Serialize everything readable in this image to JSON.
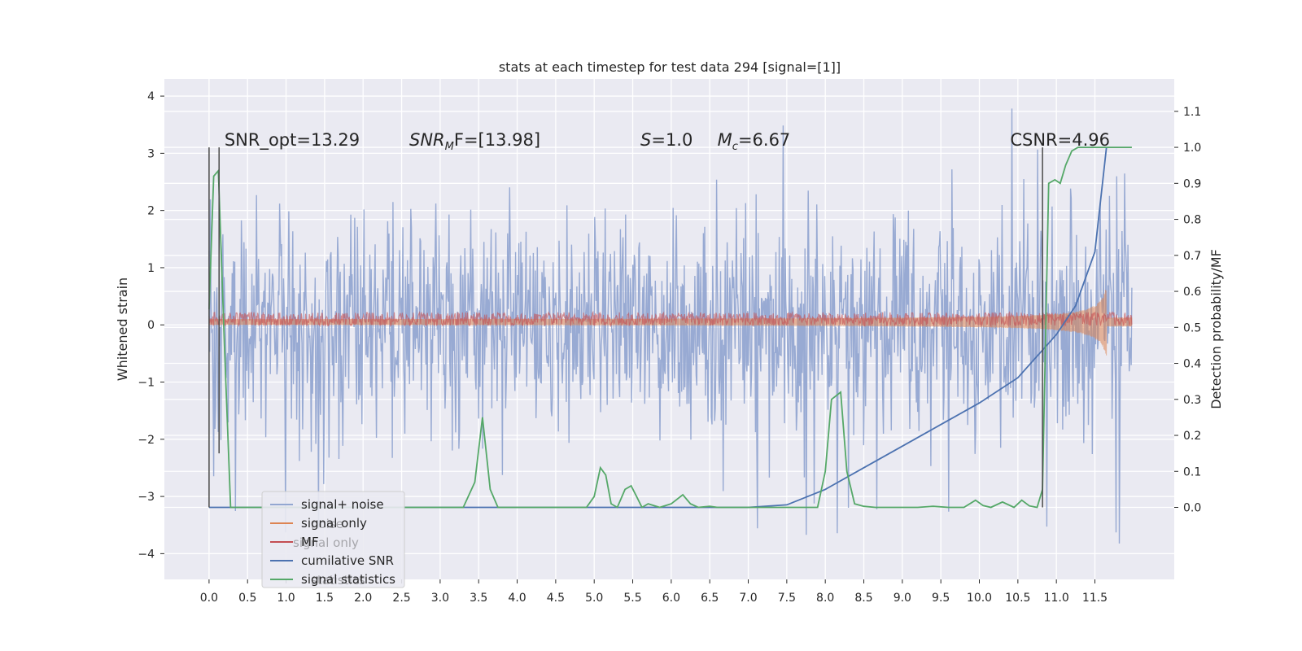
{
  "chart_data": {
    "type": "line",
    "title": "stats at each timestep for test data 294 [signal=[1]]",
    "xlabel": "",
    "ylabel_left": "Whitened strain",
    "ylabel_right": "Detection probability/MF",
    "xlim": [
      -0.58,
      12.53
    ],
    "ylim_left": [
      -4.45,
      4.3
    ],
    "ylim_right": [
      -0.2,
      1.19
    ],
    "x_ticks": [
      "0.0",
      "0.5",
      "1.0",
      "1.5",
      "2.0",
      "2.5",
      "3.0",
      "3.5",
      "4.0",
      "4.5",
      "5.0",
      "5.5",
      "6.0",
      "6.5",
      "7.0",
      "7.5",
      "8.0",
      "8.5",
      "9.0",
      "9.5",
      "10.0",
      "10.5",
      "11.0",
      "11.5"
    ],
    "y_left_ticks": [
      "4",
      "3",
      "2",
      "1",
      "0",
      "−1",
      "−2",
      "−3",
      "−4"
    ],
    "y_right_ticks": [
      "1.1",
      "1.0",
      "0.9",
      "0.8",
      "0.7",
      "0.6",
      "0.5",
      "0.4",
      "0.3",
      "0.2",
      "0.1",
      "0.0"
    ],
    "grid": true,
    "legend_position": "lower-left",
    "legend_overlay_text": [
      "noise",
      "signal only",
      "statistics"
    ],
    "colors": {
      "background": "#eaeaf2",
      "grid": "#ffffff",
      "signal_noise": "#93a7d1",
      "signal_only": "#dd8452",
      "mf": "#c44e52",
      "cumulative_snr": "#4c72b0",
      "signal_statistics": "#55a868",
      "vlines": "#4a4a4a"
    },
    "annotations": [
      {
        "text": "SNR_opt=13.29",
        "x": 0.2,
        "y_right": 1.0
      },
      {
        "text": "SNR",
        "sub": "M",
        "after": "F=[13.98]",
        "italic": true,
        "x": 2.6,
        "y_right": 1.0
      },
      {
        "text": "S",
        "after": "=1.0",
        "italic": true,
        "x": 5.6,
        "y_right": 1.0
      },
      {
        "text": "M",
        "sub": "c",
        "after": "=6.67",
        "italic": true,
        "x": 6.6,
        "y_right": 1.0
      },
      {
        "text": "CSNR=4.96",
        "x": 10.4,
        "y_right": 1.0
      }
    ],
    "vertical_lines": [
      {
        "x": 0.0,
        "y_right": [
          0.0,
          1.0
        ]
      },
      {
        "x": 0.13,
        "y_right": [
          0.15,
          1.0
        ]
      },
      {
        "x": 10.82,
        "y_right": [
          0.0,
          1.0
        ]
      }
    ],
    "series": [
      {
        "name": "signal+ noise",
        "axis": "left",
        "style": "noise",
        "x_range": [
          0.0,
          11.98
        ],
        "envelope_y": [
          -2.5,
          2.3
        ],
        "spike_y": [
          -4.0,
          3.95
        ]
      },
      {
        "name": "signal only",
        "axis": "left",
        "style": "chirp",
        "x_range": [
          0.0,
          11.98
        ],
        "amplitude_start": 0.04,
        "amplitude_end": 1.6,
        "peak_x": 11.65
      },
      {
        "name": "MF",
        "axis": "left",
        "style": "band",
        "x_range": [
          0.0,
          11.98
        ],
        "y_center": 0.1,
        "y_half_width": 0.12
      },
      {
        "name": "cumilative SNR",
        "axis": "right",
        "x": [
          0.0,
          6.0,
          7.0,
          7.5,
          8.0,
          8.5,
          9.0,
          9.5,
          10.0,
          10.5,
          11.0,
          11.25,
          11.5,
          11.65
        ],
        "y": [
          0.0,
          0.0,
          0.0,
          0.007,
          0.05,
          0.11,
          0.17,
          0.23,
          0.29,
          0.36,
          0.48,
          0.56,
          0.71,
          1.0
        ]
      },
      {
        "name": "signal statistics",
        "axis": "right",
        "x": [
          0.0,
          0.06,
          0.12,
          0.2,
          0.28,
          0.4,
          0.6,
          3.3,
          3.45,
          3.55,
          3.65,
          3.75,
          3.9,
          4.9,
          5.0,
          5.08,
          5.15,
          5.22,
          5.3,
          5.4,
          5.48,
          5.55,
          5.62,
          5.7,
          5.85,
          6.0,
          6.15,
          6.25,
          6.35,
          6.5,
          6.6,
          6.75,
          7.0,
          7.9,
          8.0,
          8.08,
          8.2,
          8.28,
          8.38,
          8.5,
          8.65,
          9.2,
          9.4,
          9.6,
          9.8,
          9.95,
          10.05,
          10.15,
          10.3,
          10.45,
          10.55,
          10.65,
          10.75,
          10.82,
          10.9,
          10.98,
          11.05,
          11.12,
          11.2,
          11.28,
          11.35,
          11.45,
          11.65,
          11.98
        ],
        "y": [
          0.55,
          0.92,
          0.935,
          0.45,
          0.0,
          0.0,
          0.0,
          0.0,
          0.07,
          0.25,
          0.05,
          0.0,
          0.0,
          0.0,
          0.03,
          0.11,
          0.09,
          0.01,
          0.0,
          0.05,
          0.06,
          0.03,
          0.0,
          0.01,
          0.0,
          0.01,
          0.035,
          0.01,
          0.0,
          0.003,
          0.0,
          0.0,
          0.0,
          0.0,
          0.1,
          0.3,
          0.32,
          0.1,
          0.01,
          0.003,
          0.0,
          0.0,
          0.003,
          0.0,
          0.0,
          0.02,
          0.005,
          0.0,
          0.015,
          0.0,
          0.02,
          0.004,
          0.0,
          0.05,
          0.9,
          0.91,
          0.9,
          0.95,
          0.99,
          1.0,
          1.0,
          1.0,
          1.0,
          1.0
        ]
      }
    ]
  }
}
